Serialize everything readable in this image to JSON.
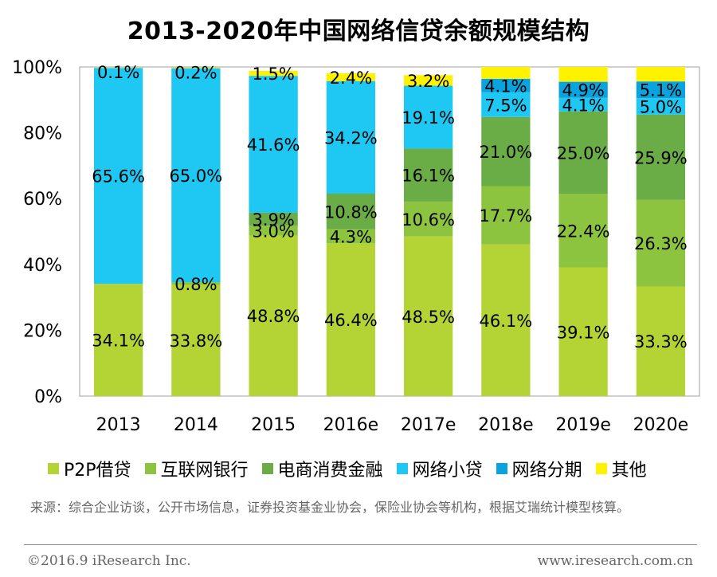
{
  "chart_data": {
    "type": "bar",
    "stacked": true,
    "title": "2013-2020年中国网络信贷余额规模结构",
    "xlabel": "",
    "ylabel": "",
    "ylim": [
      0,
      100
    ],
    "yticks": [
      "0%",
      "20%",
      "40%",
      "60%",
      "80%",
      "100%"
    ],
    "categories": [
      "2013",
      "2014",
      "2015",
      "2016e",
      "2017e",
      "2018e",
      "2019e",
      "2020e"
    ],
    "series": [
      {
        "name": "P2P借贷",
        "color": "#b4d334",
        "values": [
          34.1,
          33.8,
          48.8,
          46.4,
          48.5,
          46.1,
          39.1,
          33.3
        ],
        "labels": [
          "34.1%",
          "33.8%",
          "48.8%",
          "46.4%",
          "48.5%",
          "46.1%",
          "39.1%",
          "33.3%"
        ]
      },
      {
        "name": "互联网银行",
        "color": "#8dc43f",
        "values": [
          0,
          0.8,
          3.0,
          4.3,
          10.6,
          17.7,
          22.4,
          26.3
        ],
        "labels": [
          "",
          "0.8%",
          "3.0%",
          "4.3%",
          "10.6%",
          "17.7%",
          "22.4%",
          "26.3%"
        ]
      },
      {
        "name": "电商消费金融",
        "color": "#6aac46",
        "values": [
          0,
          0,
          3.9,
          10.8,
          16.1,
          21.0,
          25.0,
          25.9
        ],
        "labels": [
          "",
          "",
          "3.9%",
          "10.8%",
          "16.1%",
          "21.0%",
          "25.0%",
          "25.9%"
        ]
      },
      {
        "name": "网络小贷",
        "color": "#1ec8f2",
        "values": [
          65.6,
          65.0,
          41.6,
          34.2,
          19.1,
          7.5,
          4.1,
          5.0
        ],
        "labels": [
          "65.6%",
          "65.0%",
          "41.6%",
          "34.2%",
          "19.1%",
          "7.5%",
          "4.1%",
          "5.0%"
        ]
      },
      {
        "name": "网络分期",
        "color": "#0aa3dd",
        "values": [
          0,
          0,
          0,
          0,
          0,
          4.1,
          4.9,
          5.1
        ],
        "labels": [
          "",
          "",
          "",
          "",
          "",
          "4.1%",
          "4.9%",
          "5.1%"
        ]
      },
      {
        "name": "其他",
        "color": "#fff200",
        "values": [
          0.1,
          0.2,
          1.5,
          2.4,
          3.2,
          3.6,
          4.5,
          4.4
        ],
        "labels": [
          "0.1%",
          "0.2%",
          "1.5%",
          "2.4%",
          "3.2%",
          "",
          "",
          ""
        ]
      }
    ],
    "grid": false,
    "legend_position": "bottom"
  },
  "legend": [
    {
      "label": "P2P借贷",
      "color": "#b4d334"
    },
    {
      "label": "互联网银行",
      "color": "#8dc43f"
    },
    {
      "label": "电商消费金融",
      "color": "#6aac46"
    },
    {
      "label": "网络小贷",
      "color": "#1ec8f2"
    },
    {
      "label": "网络分期",
      "color": "#0aa3dd"
    },
    {
      "label": "其他",
      "color": "#fff200"
    }
  ],
  "source": "来源：综合企业访谈，公开市场信息，证券投资基金业协会，保险业协会等机构，根据艾瑞统计模型核算。",
  "footer": {
    "copyright": "©2016.9 iResearch Inc.",
    "website": "www.iresearch.com.cn"
  }
}
